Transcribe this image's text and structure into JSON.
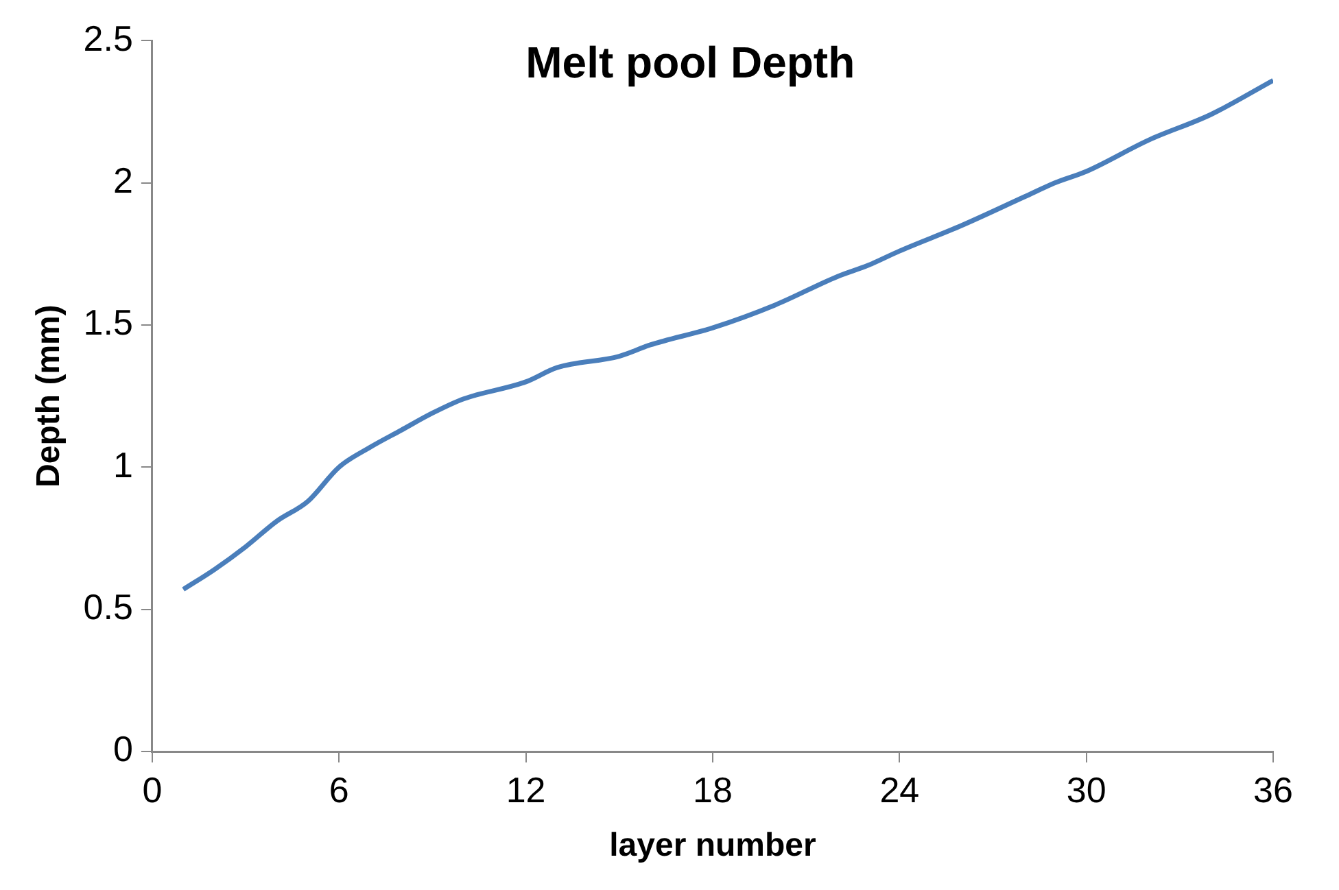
{
  "chart_data": {
    "type": "line",
    "title": "Melt pool Depth",
    "xlabel": "layer number",
    "ylabel": "Depth (mm)",
    "series": [
      {
        "color": "#4a7ebb",
        "x": [
          1,
          2,
          3,
          4,
          5,
          6,
          7,
          8,
          9,
          10,
          12,
          13,
          15,
          16,
          18,
          20,
          22,
          23,
          24,
          26,
          28,
          29,
          30,
          32,
          34,
          36
        ],
        "values": [
          0.57,
          0.64,
          0.72,
          0.81,
          0.88,
          1.0,
          1.07,
          1.13,
          1.19,
          1.24,
          1.3,
          1.35,
          1.39,
          1.43,
          1.49,
          1.57,
          1.67,
          1.71,
          1.76,
          1.85,
          1.95,
          2.0,
          2.04,
          2.15,
          2.24,
          2.36
        ]
      }
    ],
    "xlim": [
      0,
      36
    ],
    "xticks": [
      0,
      6,
      12,
      18,
      24,
      30,
      36
    ],
    "ylim": [
      0,
      2.5
    ],
    "yticks": [
      0,
      0.5,
      1,
      1.5,
      2,
      2.5
    ],
    "grid": false,
    "legend": false,
    "marker": "none",
    "line_style": "solid"
  }
}
